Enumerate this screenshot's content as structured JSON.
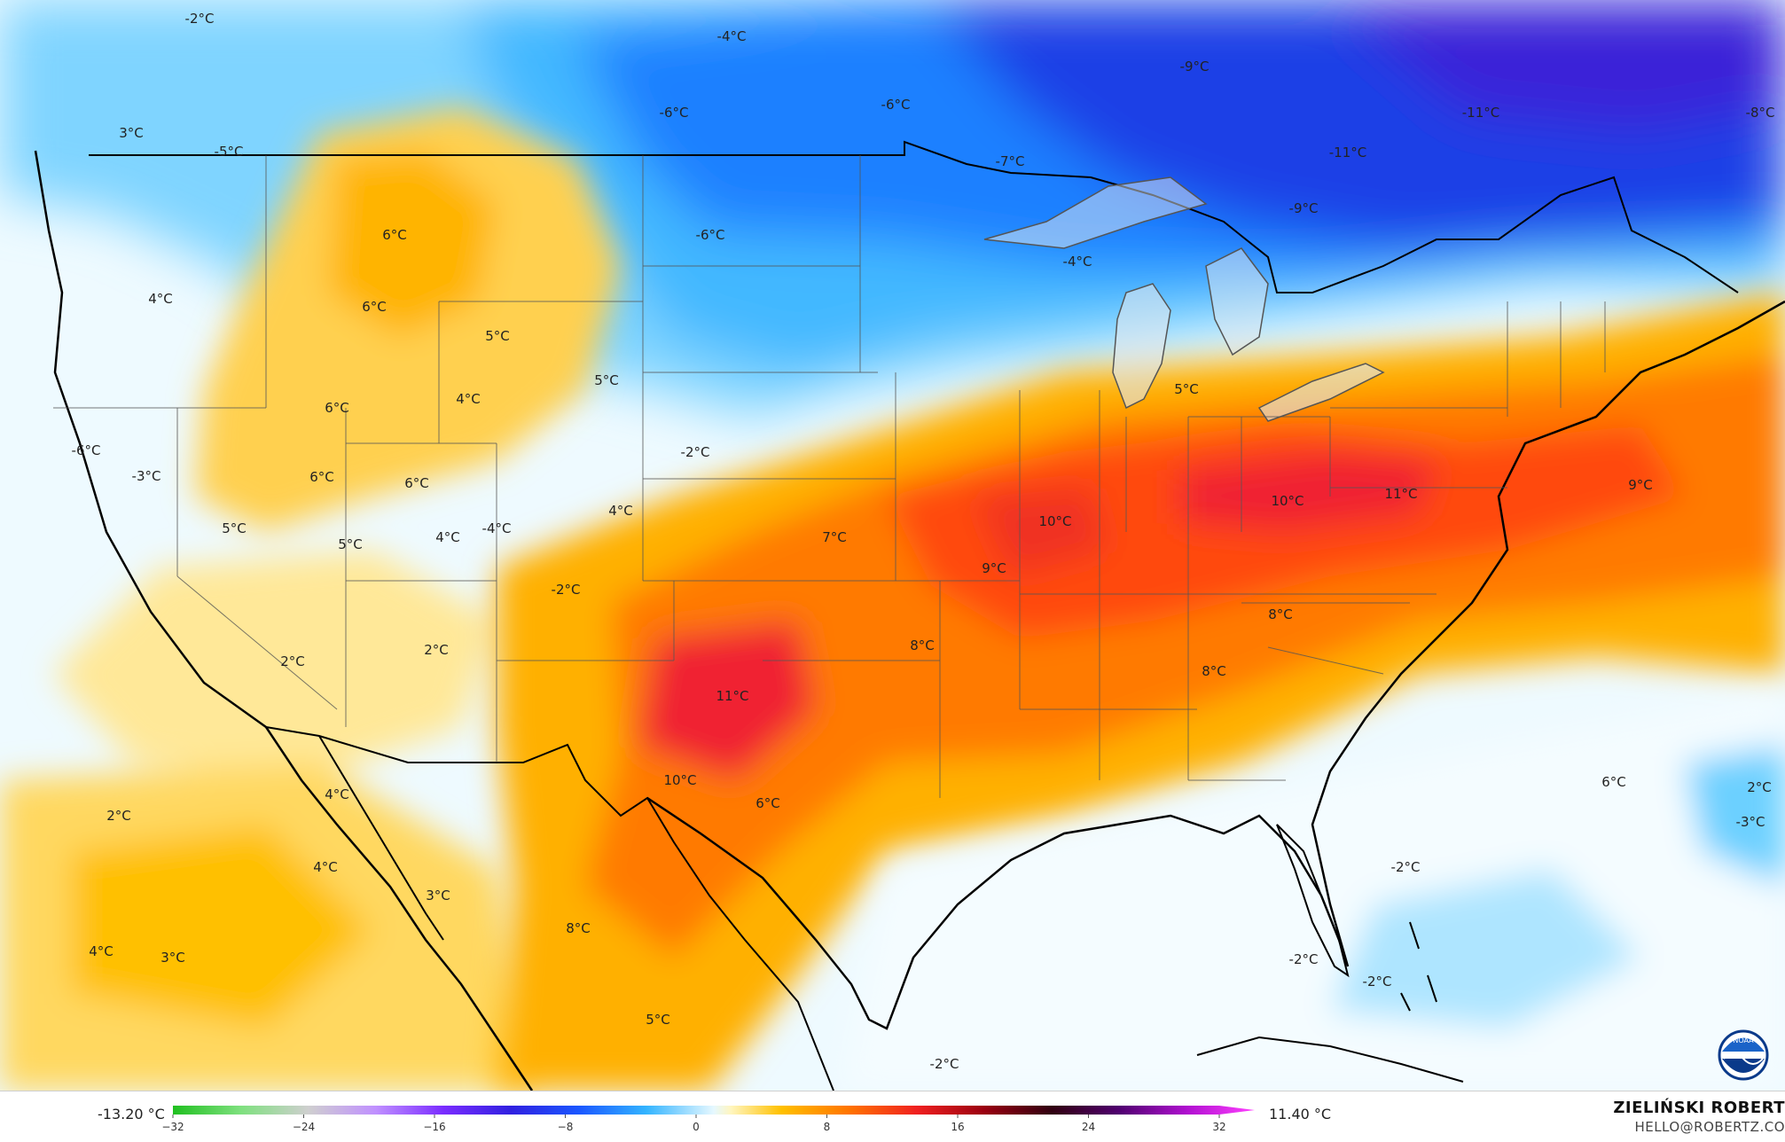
{
  "legend": {
    "min_label": "-13.20 °C",
    "max_label": "11.40 °C",
    "ticks": [
      "−32",
      "−24",
      "−16",
      "−8",
      "0",
      "8",
      "16",
      "24",
      "32"
    ],
    "tick_values": [
      -32,
      -24,
      -16,
      -8,
      0,
      8,
      16,
      24,
      32
    ],
    "range": [
      -32,
      32
    ],
    "stops": [
      {
        "v": -32,
        "c": "#20c020"
      },
      {
        "v": -28,
        "c": "#7ee07e"
      },
      {
        "v": -24,
        "c": "#cfcfcf"
      },
      {
        "v": -20,
        "c": "#c090ff"
      },
      {
        "v": -16,
        "c": "#7a2cff"
      },
      {
        "v": -12,
        "c": "#3020e0"
      },
      {
        "v": -8,
        "c": "#1a56ff"
      },
      {
        "v": -4,
        "c": "#33b4ff"
      },
      {
        "v": 0,
        "c": "#e6f8ff"
      },
      {
        "v": 1,
        "c": "#fff6c0"
      },
      {
        "v": 4,
        "c": "#ffc000"
      },
      {
        "v": 8,
        "c": "#ff7400"
      },
      {
        "v": 12,
        "c": "#f02020"
      },
      {
        "v": 16,
        "c": "#9a0010"
      },
      {
        "v": 20,
        "c": "#300010"
      },
      {
        "v": 24,
        "c": "#500070"
      },
      {
        "v": 28,
        "c": "#b010d0"
      },
      {
        "v": 32,
        "c": "#ff40ff"
      }
    ]
  },
  "author": {
    "name": "ZIELIŃSKI ROBERT",
    "email": "HELLO@ROBERTZ.CO"
  },
  "logo": {
    "name": "NOAA",
    "text": "NOAA"
  },
  "colors": {
    "cold_deep": "#1a2ee0",
    "cold": "#1a7bff",
    "cool": "#4cc6ff",
    "near_zero": "#eafaff",
    "mild": "#ffe880",
    "warm": "#ffb400",
    "hot": "#ff7000",
    "hottest": "#f01c30"
  },
  "map_labels": [
    {
      "text": "-2°C",
      "value": -2
    },
    {
      "text": "-4°C",
      "value": -4
    },
    {
      "text": "-6°C",
      "value": -6
    },
    {
      "text": "-6°C",
      "value": -6
    },
    {
      "text": "-9°C",
      "value": -9
    },
    {
      "text": "-11°C",
      "value": -11
    },
    {
      "text": "-8°C",
      "value": -8
    },
    {
      "text": "3°C",
      "value": 3
    },
    {
      "text": "-5°C",
      "value": -5
    },
    {
      "text": "-7°C",
      "value": -7
    },
    {
      "text": "-11°C",
      "value": -11
    },
    {
      "text": "-9°C",
      "value": -9
    },
    {
      "text": "6°C",
      "value": 6
    },
    {
      "text": "-6°C",
      "value": -6
    },
    {
      "text": "-4°C",
      "value": -4
    },
    {
      "text": "4°C",
      "value": 4
    },
    {
      "text": "6°C",
      "value": 6
    },
    {
      "text": "5°C",
      "value": 5
    },
    {
      "text": "5°C",
      "value": 5
    },
    {
      "text": "4°C",
      "value": 4
    },
    {
      "text": "5°C",
      "value": 5
    },
    {
      "text": "6°C",
      "value": 6
    },
    {
      "text": "6°C",
      "value": 6
    },
    {
      "text": "-6°C",
      "value": -6
    },
    {
      "text": "-3°C",
      "value": -3
    },
    {
      "text": "6°C",
      "value": 6
    },
    {
      "text": "-2°C",
      "value": -2
    },
    {
      "text": "-4°C",
      "value": -4
    },
    {
      "text": "10°C",
      "value": 10
    },
    {
      "text": "11°C",
      "value": 11
    },
    {
      "text": "9°C",
      "value": 9
    },
    {
      "text": "5°C",
      "value": 5
    },
    {
      "text": "5°C",
      "value": 5
    },
    {
      "text": "4°C",
      "value": 4
    },
    {
      "text": "4°C",
      "value": 4
    },
    {
      "text": "7°C",
      "value": 7
    },
    {
      "text": "10°C",
      "value": 10
    },
    {
      "text": "9°C",
      "value": 9
    },
    {
      "text": "-2°C",
      "value": -2
    },
    {
      "text": "8°C",
      "value": 8
    },
    {
      "text": "2°C",
      "value": 2
    },
    {
      "text": "2°C",
      "value": 2
    },
    {
      "text": "11°C",
      "value": 11
    },
    {
      "text": "8°C",
      "value": 8
    },
    {
      "text": "8°C",
      "value": 8
    },
    {
      "text": "6°C",
      "value": 6
    },
    {
      "text": "10°C",
      "value": 10
    },
    {
      "text": "4°C",
      "value": 4
    },
    {
      "text": "2°C",
      "value": 2
    },
    {
      "text": "6°C",
      "value": 6
    },
    {
      "text": "2°C",
      "value": 2
    },
    {
      "text": "-3°C",
      "value": -3
    },
    {
      "text": "4°C",
      "value": 4
    },
    {
      "text": "-2°C",
      "value": -2
    },
    {
      "text": "3°C",
      "value": 3
    },
    {
      "text": "8°C",
      "value": 8
    },
    {
      "text": "4°C",
      "value": 4
    },
    {
      "text": "3°C",
      "value": 3
    },
    {
      "text": "-2°C",
      "value": -2
    },
    {
      "text": "-2°C",
      "value": -2
    },
    {
      "text": "5°C",
      "value": 5
    },
    {
      "text": "-2°C",
      "value": -2
    }
  ]
}
